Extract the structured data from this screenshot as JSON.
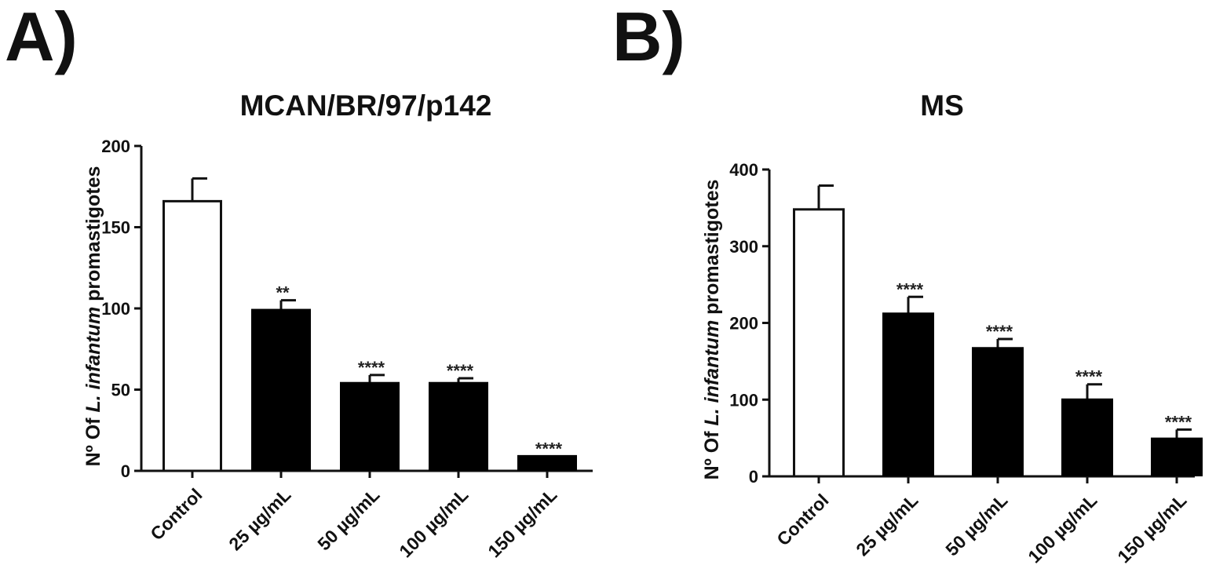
{
  "chart_data": [
    {
      "panel": "A)",
      "type": "bar",
      "title": "MCAN/BR/97/p142",
      "ylabel": {
        "prefix": "Nº Of ",
        "italic": "L. infantum",
        "suffix": " promastigotes"
      },
      "xlabel": "",
      "ylim": [
        0,
        200
      ],
      "yticks": [
        0,
        50,
        100,
        150,
        200
      ],
      "categories": [
        "Control",
        "25 µg/mL",
        "50 µg/mL",
        "100 µg/mL",
        "150 µg/mL"
      ],
      "values": [
        166,
        99,
        54,
        54,
        9
      ],
      "errors": [
        14,
        6,
        5,
        3,
        0
      ],
      "significance": [
        "",
        "**",
        "****",
        "****",
        "****"
      ],
      "fill": [
        "#ffffff",
        "#000000",
        "#000000",
        "#000000",
        "#000000"
      ],
      "grid": false,
      "legend": "none"
    },
    {
      "panel": "B)",
      "type": "bar",
      "title": "MS",
      "ylabel": {
        "prefix": "Nº Of ",
        "italic": "L. infantum",
        "suffix": " promastigotes"
      },
      "xlabel": "",
      "ylim": [
        0,
        400
      ],
      "yticks": [
        0,
        100,
        200,
        300,
        400
      ],
      "categories": [
        "Control",
        "25 µg/mL",
        "50 µg/mL",
        "100 µg/mL",
        "150 µg/mL"
      ],
      "values": [
        348,
        212,
        167,
        100,
        49
      ],
      "errors": [
        31,
        22,
        12,
        20,
        12
      ],
      "significance": [
        "",
        "****",
        "****",
        "****",
        "****"
      ],
      "fill": [
        "#ffffff",
        "#000000",
        "#000000",
        "#000000",
        "#000000"
      ],
      "grid": false,
      "legend": "none"
    }
  ]
}
